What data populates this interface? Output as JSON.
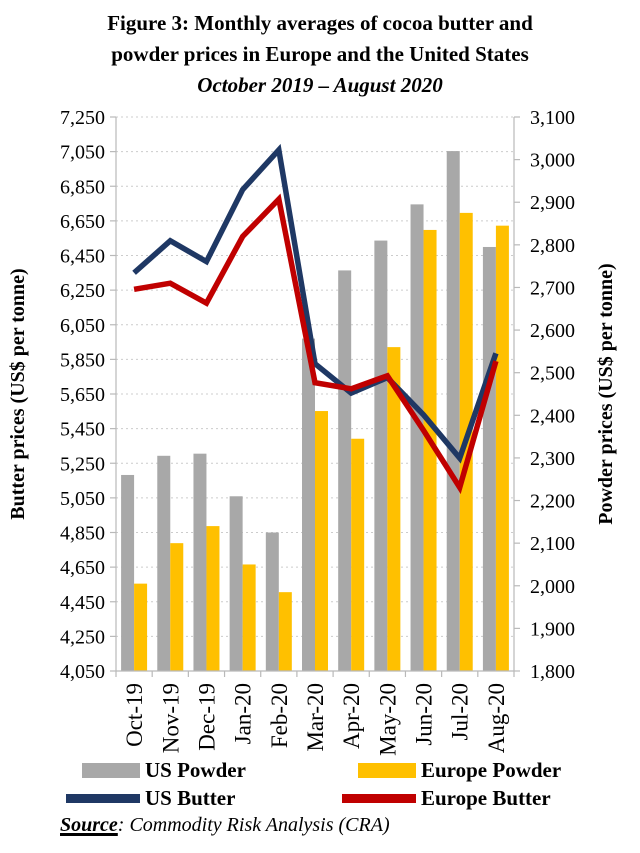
{
  "figure": {
    "title_line1": "Figure 3: Monthly averages of cocoa butter and",
    "title_line2": "powder prices in Europe and the United States",
    "subtitle": "October 2019 – August 2020"
  },
  "source": {
    "label": "Source",
    "text": ": Commodity Risk Analysis (CRA)"
  },
  "chart_data": {
    "type": "combo-bar-line",
    "grid": "horizontal-dashed",
    "categories": [
      "Oct-19",
      "Nov-19",
      "Dec-19",
      "Jan-20",
      "Feb-20",
      "Mar-20",
      "Apr-20",
      "May-20",
      "Jun-20",
      "Jul-20",
      "Aug-20"
    ],
    "bar_series": [
      {
        "name": "US Powder",
        "axis": "right",
        "color": "#a8a8a8",
        "values": [
          2260,
          2305,
          2310,
          2210,
          2125,
          2580,
          2740,
          2810,
          2895,
          3020,
          2795
        ]
      },
      {
        "name": "Europe Powder",
        "axis": "right",
        "color": "#ffc000",
        "values": [
          2005,
          2100,
          2140,
          2050,
          1985,
          2410,
          2345,
          2560,
          2835,
          2875,
          2845
        ]
      }
    ],
    "line_series": [
      {
        "name": "US Butter",
        "axis": "left",
        "color": "#1f3864",
        "values": [
          6350,
          6535,
          6415,
          6830,
          7060,
          5825,
          5655,
          5745,
          5530,
          5280,
          5885
        ]
      },
      {
        "name": "Europe Butter",
        "axis": "left",
        "color": "#c00000",
        "values": [
          6255,
          6290,
          6175,
          6560,
          6775,
          5715,
          5680,
          5755,
          5440,
          5110,
          5840
        ]
      }
    ],
    "left_axis": {
      "label": "Butter prices (US$ per tonne)",
      "min": 4050,
      "max": 7250,
      "step": 200,
      "tick_labels": [
        "7,250",
        "7,050",
        "6,850",
        "6,650",
        "6,450",
        "6,250",
        "6,050",
        "5,850",
        "5,650",
        "5,450",
        "5,250",
        "5,050",
        "4,850",
        "4,650",
        "4,450",
        "4,250",
        "4,050"
      ]
    },
    "right_axis": {
      "label": "Powder prices (US$ per tonne)",
      "min": 1800,
      "max": 3100,
      "step": 100,
      "tick_labels": [
        "3,100",
        "3,000",
        "2,900",
        "2,800",
        "2,700",
        "2,600",
        "2,500",
        "2,400",
        "2,300",
        "2,200",
        "2,100",
        "2,000",
        "1,900",
        "1,800"
      ]
    },
    "legend": {
      "position": "bottom",
      "items": [
        {
          "label": "US Powder",
          "color": "#a8a8a8",
          "shape": "bar"
        },
        {
          "label": "Europe Powder",
          "color": "#ffc000",
          "shape": "bar"
        },
        {
          "label": "US Butter",
          "color": "#1f3864",
          "shape": "line"
        },
        {
          "label": "Europe Butter",
          "color": "#c00000",
          "shape": "line"
        }
      ]
    }
  }
}
